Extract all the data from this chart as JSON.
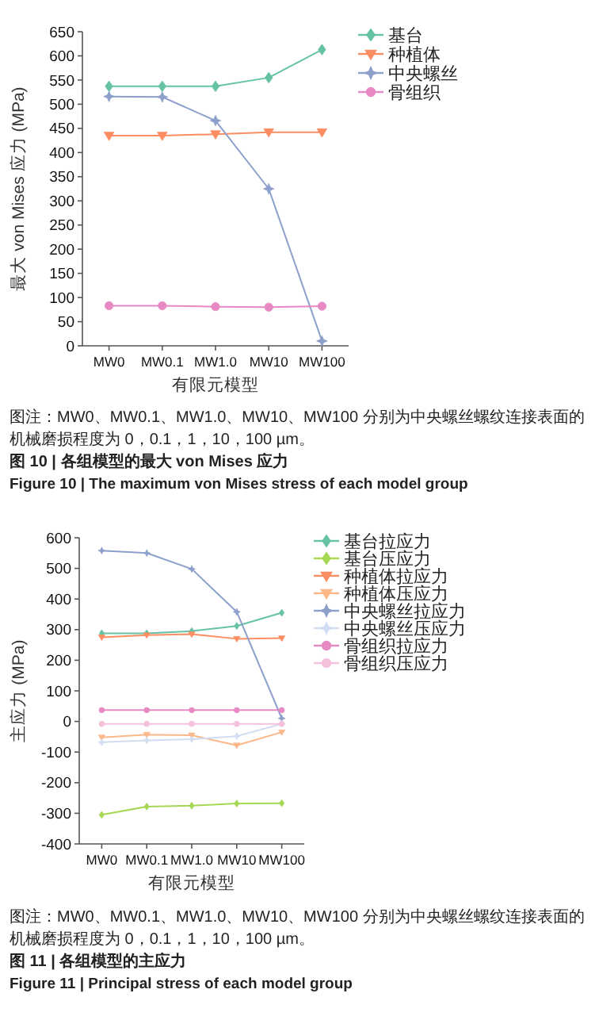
{
  "chart_data": [
    {
      "type": "line",
      "xlabel": "有限元模型",
      "ylabel": "最大 von Mises 应力 (MPa)",
      "categories": [
        "MW0",
        "MW0.1",
        "MW1.0",
        "MW10",
        "MW100"
      ],
      "series": [
        {
          "name": "基台",
          "color": "#66c2a5",
          "marker": "diamond",
          "values": [
            537,
            537,
            537,
            555,
            613
          ]
        },
        {
          "name": "种植体",
          "color": "#fc8d62",
          "marker": "triangle",
          "values": [
            435,
            435,
            438,
            442,
            442
          ]
        },
        {
          "name": "中央螺丝",
          "color": "#8da0cb",
          "marker": "star",
          "values": [
            516,
            515,
            466,
            325,
            10
          ]
        },
        {
          "name": "骨组织",
          "color": "#e78ac3",
          "marker": "circle",
          "values": [
            83,
            83,
            81,
            80,
            82
          ]
        }
      ],
      "ylim": [
        0,
        650
      ],
      "yticks": [
        0,
        50,
        100,
        150,
        200,
        250,
        300,
        350,
        400,
        450,
        500,
        550,
        600,
        650
      ],
      "legend": "right",
      "grid": false,
      "annotations": [
        "图注：MW0、MW0.1、MW1.0、MW10、MW100 分别为中央螺丝螺纹连接表面的机械磨损程度为 0，0.1，1，10，100 µm。",
        "图 10 | 各组模型的最大 von Mises 应力",
        "Figure 10 | The maximum von Mises stress of each model group"
      ]
    },
    {
      "type": "line",
      "xlabel": "有限元模型",
      "ylabel": "主应力 (MPa)",
      "categories": [
        "MW0",
        "MW0.1",
        "MW1.0",
        "MW10",
        "MW100"
      ],
      "series": [
        {
          "name": "基台拉应力",
          "color": "#66c2a5",
          "marker": "diamond",
          "values": [
            288,
            288,
            295,
            312,
            355
          ]
        },
        {
          "name": "基台压应力",
          "color": "#a6d854",
          "marker": "diamond",
          "values": [
            -305,
            -278,
            -275,
            -268,
            -267
          ]
        },
        {
          "name": "种植体拉应力",
          "color": "#fc8d62",
          "marker": "triangle",
          "values": [
            275,
            282,
            285,
            270,
            272
          ]
        },
        {
          "name": "种植体压应力",
          "color": "#fdb88a",
          "marker": "triangle",
          "values": [
            -52,
            -43,
            -45,
            -78,
            -35
          ]
        },
        {
          "name": "中央螺丝拉应力",
          "color": "#8da0cb",
          "marker": "star",
          "values": [
            558,
            550,
            498,
            358,
            10
          ]
        },
        {
          "name": "中央螺丝压应力",
          "color": "#d2dcf2",
          "marker": "star",
          "values": [
            -68,
            -62,
            -58,
            -48,
            -8
          ]
        },
        {
          "name": "骨组织拉应力",
          "color": "#e78ac3",
          "marker": "circle",
          "values": [
            37,
            37,
            37,
            37,
            37
          ]
        },
        {
          "name": "骨组织压应力",
          "color": "#f5c0dc",
          "marker": "circle",
          "values": [
            -8,
            -8,
            -8,
            -8,
            -8
          ]
        }
      ],
      "ylim": [
        -400,
        600
      ],
      "yticks": [
        -400,
        -300,
        -200,
        -100,
        0,
        100,
        200,
        300,
        400,
        500,
        600
      ],
      "legend": "right",
      "grid": false,
      "annotations": [
        "图注：MW0、MW0.1、MW1.0、MW10、MW100 分别为中央螺丝螺纹连接表面的机械磨损程度为 0，0.1，1，10，100 µm。",
        "图 11 | 各组模型的主应力",
        "Figure 11 | Principal stress of each model group"
      ]
    }
  ]
}
